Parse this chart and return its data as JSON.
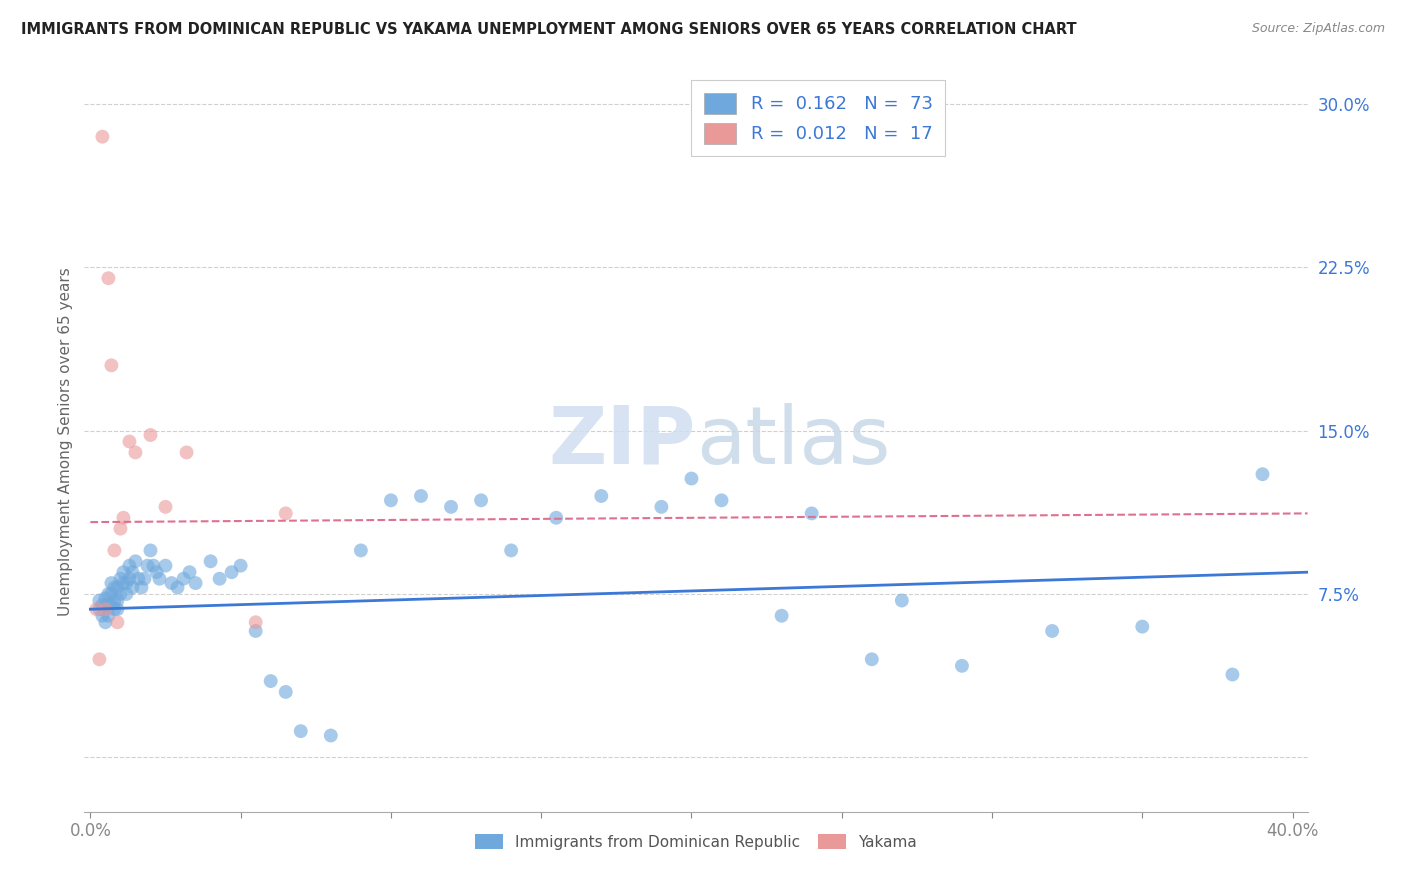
{
  "title": "IMMIGRANTS FROM DOMINICAN REPUBLIC VS YAKAMA UNEMPLOYMENT AMONG SENIORS OVER 65 YEARS CORRELATION CHART",
  "source": "Source: ZipAtlas.com",
  "ylabel": "Unemployment Among Seniors over 65 years",
  "yticks": [
    0.0,
    0.075,
    0.15,
    0.225,
    0.3
  ],
  "ytick_labels": [
    "",
    "7.5%",
    "15.0%",
    "22.5%",
    "30.0%"
  ],
  "xticks": [
    0.0,
    0.05,
    0.1,
    0.15,
    0.2,
    0.25,
    0.3,
    0.35,
    0.4
  ],
  "xlim": [
    -0.002,
    0.405
  ],
  "ylim": [
    -0.025,
    0.315
  ],
  "blue_color": "#a4c2f4",
  "pink_color": "#f4b8c1",
  "blue_fill": "#6fa8dc",
  "pink_fill": "#ea9999",
  "blue_line_color": "#3c78d8",
  "pink_line_color": "#e07090",
  "legend_blue_R": "0.162",
  "legend_blue_N": "73",
  "legend_pink_R": "0.012",
  "legend_pink_N": "17",
  "legend_label_blue": "Immigrants from Dominican Republic",
  "legend_label_pink": "Yakama",
  "watermark_zip": "ZIP",
  "watermark_atlas": "atlas",
  "grid_color": "#d0d0d0",
  "blue_scatter_x": [
    0.003,
    0.003,
    0.004,
    0.004,
    0.005,
    0.005,
    0.005,
    0.006,
    0.006,
    0.006,
    0.007,
    0.007,
    0.007,
    0.008,
    0.008,
    0.008,
    0.009,
    0.009,
    0.009,
    0.01,
    0.01,
    0.011,
    0.011,
    0.012,
    0.012,
    0.013,
    0.013,
    0.014,
    0.014,
    0.015,
    0.016,
    0.017,
    0.018,
    0.019,
    0.02,
    0.021,
    0.022,
    0.023,
    0.025,
    0.027,
    0.029,
    0.031,
    0.033,
    0.035,
    0.04,
    0.043,
    0.047,
    0.05,
    0.055,
    0.06,
    0.065,
    0.07,
    0.08,
    0.09,
    0.1,
    0.11,
    0.12,
    0.13,
    0.14,
    0.155,
    0.17,
    0.19,
    0.21,
    0.23,
    0.26,
    0.29,
    0.32,
    0.35,
    0.38,
    0.2,
    0.24,
    0.27,
    0.39
  ],
  "blue_scatter_y": [
    0.068,
    0.072,
    0.065,
    0.07,
    0.062,
    0.068,
    0.073,
    0.065,
    0.07,
    0.075,
    0.07,
    0.075,
    0.08,
    0.068,
    0.072,
    0.078,
    0.072,
    0.068,
    0.078,
    0.075,
    0.082,
    0.08,
    0.085,
    0.075,
    0.08,
    0.082,
    0.088,
    0.085,
    0.078,
    0.09,
    0.082,
    0.078,
    0.082,
    0.088,
    0.095,
    0.088,
    0.085,
    0.082,
    0.088,
    0.08,
    0.078,
    0.082,
    0.085,
    0.08,
    0.09,
    0.082,
    0.085,
    0.088,
    0.058,
    0.035,
    0.03,
    0.012,
    0.01,
    0.095,
    0.118,
    0.12,
    0.115,
    0.118,
    0.095,
    0.11,
    0.12,
    0.115,
    0.118,
    0.065,
    0.045,
    0.042,
    0.058,
    0.06,
    0.038,
    0.128,
    0.112,
    0.072,
    0.13
  ],
  "pink_scatter_x": [
    0.002,
    0.003,
    0.004,
    0.005,
    0.006,
    0.007,
    0.008,
    0.009,
    0.01,
    0.011,
    0.013,
    0.015,
    0.02,
    0.025,
    0.032,
    0.055,
    0.065
  ],
  "pink_scatter_y": [
    0.068,
    0.045,
    0.285,
    0.068,
    0.22,
    0.18,
    0.095,
    0.062,
    0.105,
    0.11,
    0.145,
    0.14,
    0.148,
    0.115,
    0.14,
    0.062,
    0.112
  ],
  "blue_trend_x": [
    0.0,
    0.405
  ],
  "blue_trend_y": [
    0.068,
    0.085
  ],
  "pink_trend_x": [
    0.0,
    0.405
  ],
  "pink_trend_y": [
    0.108,
    0.112
  ]
}
